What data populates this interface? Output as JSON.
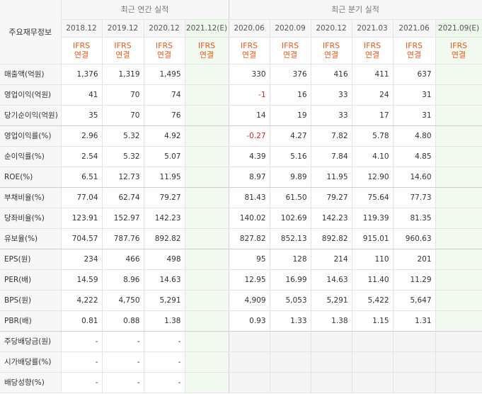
{
  "corner_label": "주요재무정보",
  "groups": {
    "annual": "최근 연간 실적",
    "quarterly": "최근 분기 실적"
  },
  "annual_periods": [
    {
      "label": "2018.12",
      "basis": "IFRS",
      "basis2": "연결"
    },
    {
      "label": "2019.12",
      "basis": "IFRS",
      "basis2": "연결"
    },
    {
      "label": "2020.12",
      "basis": "IFRS",
      "basis2": "연결"
    },
    {
      "label": "2021.12(E)",
      "basis": "IFRS",
      "basis2": "연결"
    }
  ],
  "quarterly_periods": [
    {
      "label": "2020.06",
      "basis": "IFRS",
      "basis2": "연결"
    },
    {
      "label": "2020.09",
      "basis": "IFRS",
      "basis2": "연결"
    },
    {
      "label": "2020.12",
      "basis": "IFRS",
      "basis2": "연결"
    },
    {
      "label": "2021.03",
      "basis": "IFRS",
      "basis2": "연결"
    },
    {
      "label": "2021.06",
      "basis": "IFRS",
      "basis2": "연결"
    },
    {
      "label": "2021.09(E)",
      "basis": "IFRS",
      "basis2": "연결"
    }
  ],
  "rows": [
    {
      "label": "매출액(억원)",
      "annual": [
        "1,376",
        "1,319",
        "1,495",
        ""
      ],
      "quarterly": [
        "330",
        "376",
        "416",
        "411",
        "637",
        ""
      ]
    },
    {
      "label": "영업이익(억원)",
      "annual": [
        "41",
        "70",
        "74",
        ""
      ],
      "quarterly": [
        "-1",
        "16",
        "33",
        "24",
        "31",
        ""
      ]
    },
    {
      "label": "당기순이익(억원)",
      "annual": [
        "35",
        "70",
        "76",
        ""
      ],
      "quarterly": [
        "14",
        "19",
        "33",
        "17",
        "31",
        ""
      ]
    },
    {
      "label": "영업이익률(%)",
      "annual": [
        "2.96",
        "5.32",
        "4.92",
        ""
      ],
      "quarterly": [
        "-0.27",
        "4.27",
        "7.82",
        "5.78",
        "4.80",
        ""
      ]
    },
    {
      "label": "순이익률(%)",
      "annual": [
        "2.54",
        "5.32",
        "5.07",
        ""
      ],
      "quarterly": [
        "4.39",
        "5.16",
        "7.84",
        "4.10",
        "4.85",
        ""
      ]
    },
    {
      "label": "ROE(%)",
      "annual": [
        "6.51",
        "12.73",
        "11.95",
        ""
      ],
      "quarterly": [
        "8.97",
        "9.89",
        "11.95",
        "12.90",
        "14.60",
        ""
      ]
    },
    {
      "label": "부채비율(%)",
      "annual": [
        "77.04",
        "62.74",
        "79.27",
        ""
      ],
      "quarterly": [
        "81.43",
        "61.50",
        "79.27",
        "75.64",
        "77.73",
        ""
      ]
    },
    {
      "label": "당좌비율(%)",
      "annual": [
        "123.91",
        "152.97",
        "142.23",
        ""
      ],
      "quarterly": [
        "140.02",
        "102.69",
        "142.23",
        "119.39",
        "81.35",
        ""
      ]
    },
    {
      "label": "유보율(%)",
      "annual": [
        "704.57",
        "787.76",
        "892.82",
        ""
      ],
      "quarterly": [
        "827.82",
        "852.13",
        "892.82",
        "915.01",
        "960.63",
        ""
      ]
    },
    {
      "label": "EPS(원)",
      "annual": [
        "234",
        "466",
        "498",
        ""
      ],
      "quarterly": [
        "95",
        "128",
        "214",
        "110",
        "201",
        ""
      ]
    },
    {
      "label": "PER(배)",
      "annual": [
        "14.59",
        "8.96",
        "14.63",
        ""
      ],
      "quarterly": [
        "12.95",
        "16.99",
        "14.63",
        "11.40",
        "11.29",
        ""
      ]
    },
    {
      "label": "BPS(원)",
      "annual": [
        "4,222",
        "4,750",
        "5,291",
        ""
      ],
      "quarterly": [
        "4,909",
        "5,053",
        "5,291",
        "5,422",
        "5,647",
        ""
      ]
    },
    {
      "label": "PBR(배)",
      "annual": [
        "0.81",
        "0.88",
        "1.38",
        ""
      ],
      "quarterly": [
        "0.93",
        "1.33",
        "1.38",
        "1.15",
        "1.31",
        ""
      ]
    },
    {
      "label": "주당배당금(원)",
      "annual": [
        "-",
        "-",
        "-",
        ""
      ],
      "quarterly": [
        "",
        "",
        "",
        "",
        "",
        ""
      ]
    },
    {
      "label": "시가배당률(%)",
      "annual": [
        "-",
        "-",
        "-",
        ""
      ],
      "quarterly": [
        "",
        "",
        "",
        "",
        "",
        ""
      ]
    },
    {
      "label": "배당성향(%)",
      "annual": [
        "-",
        "-",
        "-",
        ""
      ],
      "quarterly": [
        "",
        "",
        "",
        "",
        "",
        ""
      ]
    }
  ],
  "colors": {
    "ifrs": "#e85a1b",
    "negative": "#e02020",
    "estimate_bg": "#f2f9ef"
  }
}
